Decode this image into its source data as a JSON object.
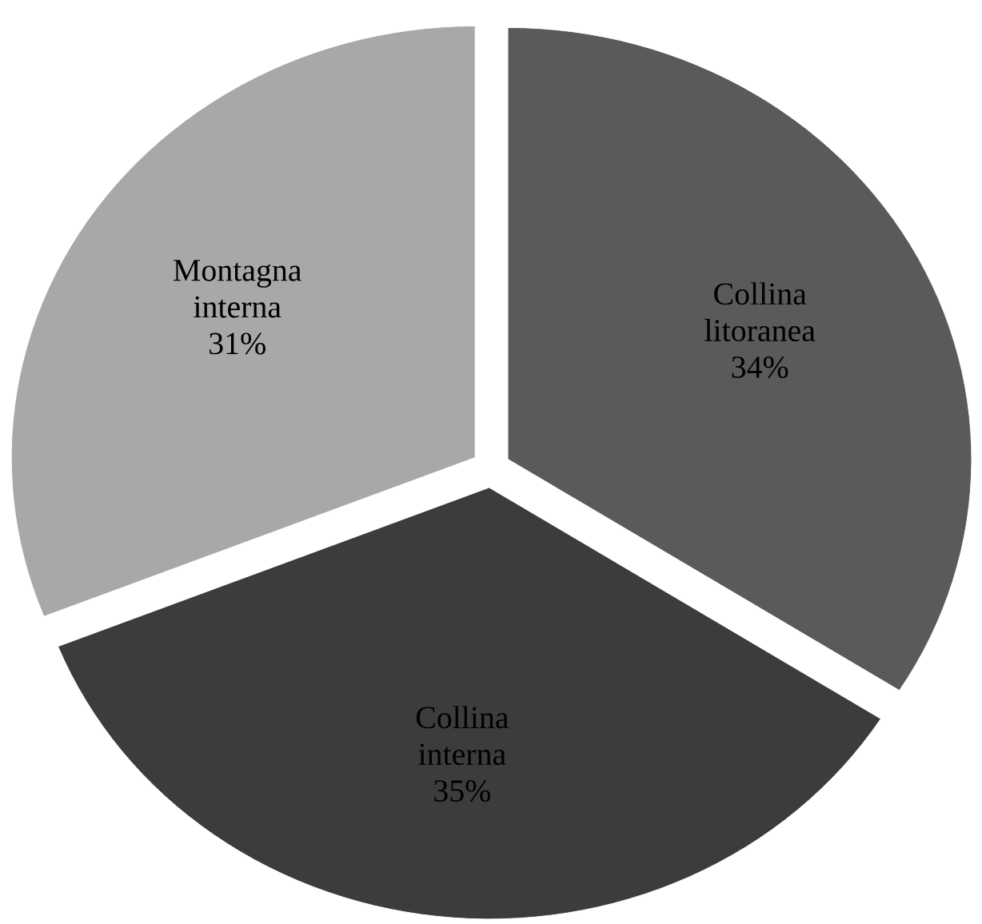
{
  "chart_data": {
    "type": "pie",
    "categories": [
      "Collina litoranea",
      "Collina interna",
      "Montagna interna"
    ],
    "values": [
      34,
      35,
      31
    ],
    "colors": [
      "#5a5a5a",
      "#3c3c3c",
      "#a8a8a8"
    ],
    "value_labels": [
      "34%",
      "35%",
      "31%"
    ]
  }
}
